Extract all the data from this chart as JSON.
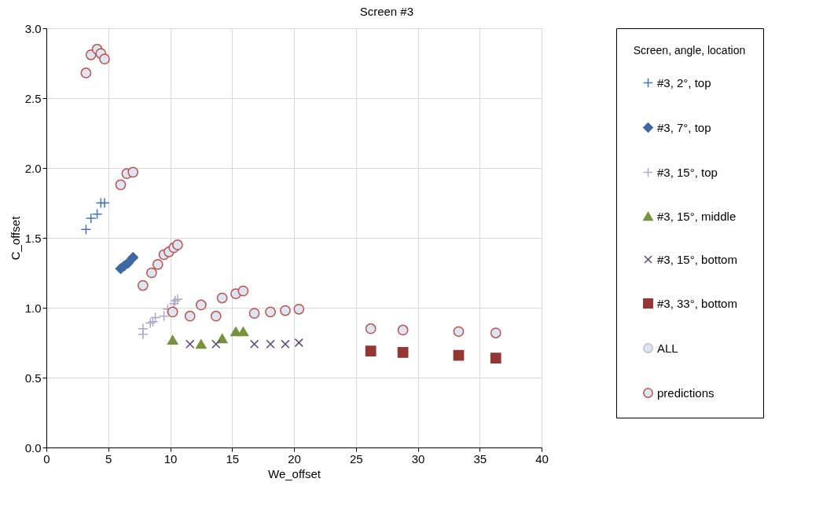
{
  "chart_data": {
    "type": "scatter",
    "title": "Screen #3",
    "xlabel": "We_offset",
    "ylabel": "C_offset",
    "legend_title": "Screen, angle, location",
    "xlim": [
      0,
      40
    ],
    "xticks": [
      0,
      5,
      10,
      15,
      20,
      25,
      30,
      35,
      40
    ],
    "ylim": [
      0,
      3.0
    ],
    "yticks": [
      {
        "value": 0,
        "label": "0.0"
      },
      {
        "value": 0.5,
        "label": "0.5"
      },
      {
        "value": 1,
        "label": "1.0"
      },
      {
        "value": 1.5,
        "label": "1.5"
      },
      {
        "value": 2,
        "label": "2.0"
      },
      {
        "value": 2.5,
        "label": "2.5"
      },
      {
        "value": 3,
        "label": "3.0"
      }
    ],
    "grid": true,
    "legend": "right",
    "series": [
      {
        "name": "#3, 2°, top",
        "color": "#4472c4",
        "marker": "plus",
        "x": [
          3.2,
          3.6,
          4.1,
          4.4,
          4.7
        ],
        "values": [
          1.56,
          1.64,
          1.67,
          1.75,
          1.75
        ]
      },
      {
        "name": "#3, 7°, top",
        "color": "#3d68a3",
        "marker": "diamond",
        "x": [
          6.0,
          6.3,
          6.6,
          7.0
        ],
        "values": [
          1.28,
          1.3,
          1.32,
          1.36
        ]
      },
      {
        "name": "#3, 15°, top",
        "color": "#b3a6cb",
        "marker": "plus",
        "x": [
          7.8,
          7.8,
          8.4,
          8.6,
          8.8,
          9.5,
          9.8,
          10.3,
          10.4,
          10.6
        ],
        "values": [
          0.81,
          0.85,
          0.89,
          0.9,
          0.93,
          0.94,
          0.99,
          1.03,
          1.05,
          1.06
        ]
      },
      {
        "name": "#3, 15°, middle",
        "color": "#77933c",
        "marker": "triangle",
        "x": [
          10.2,
          12.5,
          14.2,
          15.3,
          15.9
        ],
        "values": [
          0.77,
          0.74,
          0.78,
          0.83,
          0.83
        ]
      },
      {
        "name": "#3, 15°, bottom",
        "color": "#604a7b",
        "marker": "x",
        "x": [
          11.6,
          13.7,
          16.8,
          18.1,
          19.3,
          20.4
        ],
        "values": [
          0.74,
          0.74,
          0.74,
          0.74,
          0.74,
          0.75
        ]
      },
      {
        "name": "#3, 33°, bottom",
        "color": "#943634",
        "marker": "square",
        "x": [
          26.2,
          28.8,
          33.3,
          36.3
        ],
        "values": [
          0.69,
          0.68,
          0.66,
          0.64
        ]
      },
      {
        "name": "ALL",
        "color": "#bfbfbf",
        "marker": "circle"
      },
      {
        "name": "predictions",
        "color": "#c0504d",
        "marker": "circle",
        "x": [
          3.2,
          3.6,
          4.1,
          4.4,
          4.7,
          6.0,
          6.5,
          7.0,
          7.8,
          8.5,
          9.0,
          9.5,
          9.9,
          10.3,
          10.6,
          10.2,
          11.6,
          12.5,
          13.7,
          14.2,
          15.3,
          15.9,
          16.8,
          18.1,
          19.3,
          20.4,
          26.2,
          28.8,
          33.3,
          36.3
        ],
        "values": [
          2.68,
          2.81,
          2.85,
          2.82,
          2.78,
          1.88,
          1.96,
          1.97,
          1.16,
          1.25,
          1.31,
          1.38,
          1.4,
          1.43,
          1.45,
          0.97,
          0.94,
          1.02,
          0.94,
          1.07,
          1.1,
          1.12,
          0.96,
          0.97,
          0.98,
          0.99,
          0.85,
          0.84,
          0.83,
          0.82
        ]
      }
    ]
  }
}
